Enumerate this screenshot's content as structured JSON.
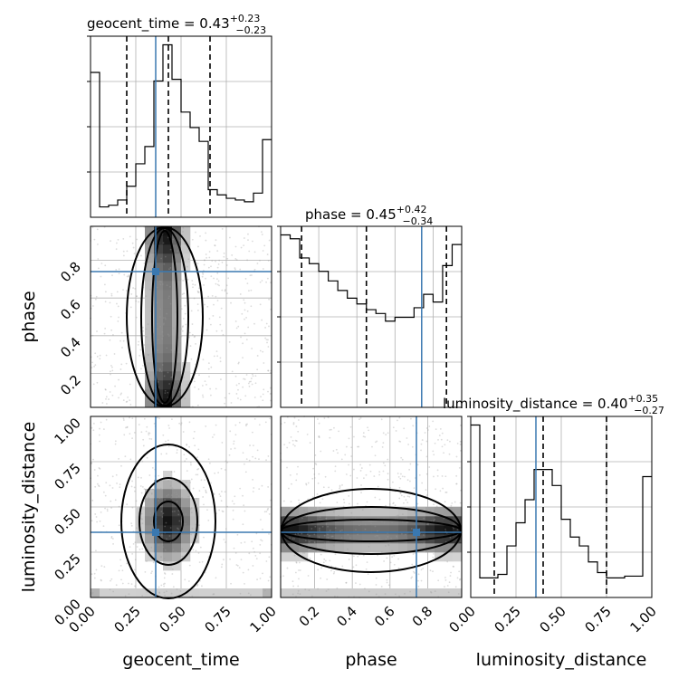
{
  "chart_data": {
    "type": "corner",
    "parameters": [
      "geocent_time",
      "phase",
      "luminosity_distance"
    ],
    "truths": {
      "geocent_time": 0.36,
      "phase": 0.74,
      "luminosity_distance": 0.36
    },
    "panels": [
      {
        "kind": "histogram",
        "parameter": "geocent_time",
        "title_main": "geocent_time = 0.43",
        "title_plus": "+0.23",
        "title_minus": "−0.23",
        "xlim": [
          0,
          1
        ],
        "bin_edges": [
          0,
          0.05,
          0.1,
          0.15,
          0.2,
          0.25,
          0.3,
          0.35,
          0.4,
          0.45,
          0.5,
          0.55,
          0.6,
          0.65,
          0.7,
          0.75,
          0.8,
          0.85,
          0.9,
          0.95,
          1.0
        ],
        "counts": [
          0.84,
          0.06,
          0.07,
          0.1,
          0.18,
          0.31,
          0.41,
          0.79,
          1.0,
          0.8,
          0.61,
          0.52,
          0.44,
          0.16,
          0.13,
          0.11,
          0.1,
          0.09,
          0.14,
          0.45
        ],
        "quantiles": [
          0.2,
          0.43,
          0.66
        ],
        "xticks": [
          0,
          0.25,
          0.5,
          0.75,
          1.0
        ],
        "xtick_labels": [
          "0.00",
          "0.25",
          "0.50",
          "0.75",
          "1.00"
        ]
      },
      {
        "kind": "histogram",
        "parameter": "phase",
        "title_main": "phase = 0.45",
        "title_plus": "+0.42",
        "title_minus": "−0.34",
        "xlim": [
          0,
          0.95
        ],
        "bin_edges": [
          0,
          0.05,
          0.1,
          0.15,
          0.2,
          0.25,
          0.3,
          0.35,
          0.4,
          0.45,
          0.5,
          0.55,
          0.6,
          0.65,
          0.7,
          0.75,
          0.8,
          0.85,
          0.9,
          0.95
        ],
        "counts": [
          0.9,
          0.88,
          0.78,
          0.75,
          0.71,
          0.66,
          0.61,
          0.57,
          0.54,
          0.51,
          0.49,
          0.45,
          0.47,
          0.47,
          0.52,
          0.59,
          0.55,
          0.74,
          0.85
        ],
        "quantiles": [
          0.11,
          0.45,
          0.87
        ],
        "xticks": [
          0.2,
          0.4,
          0.6,
          0.8
        ],
        "xtick_labels": [
          "0.2",
          "0.4",
          "0.6",
          "0.8"
        ],
        "yticks": [
          0.2,
          0.4,
          0.6,
          0.8
        ],
        "ytick_labels": [
          "0.2",
          "0.4",
          "0.6",
          "0.8"
        ]
      },
      {
        "kind": "histogram",
        "parameter": "luminosity_distance",
        "title_main": "luminosity_distance = 0.40",
        "title_plus": "+0.35",
        "title_minus": "−0.27",
        "xlim": [
          0,
          1
        ],
        "bin_edges": [
          0,
          0.05,
          0.1,
          0.15,
          0.2,
          0.25,
          0.3,
          0.35,
          0.4,
          0.45,
          0.5,
          0.55,
          0.6,
          0.65,
          0.7,
          0.75,
          0.8,
          0.85,
          0.9,
          0.95,
          1.0
        ],
        "counts": [
          0.97,
          0.11,
          0.11,
          0.13,
          0.29,
          0.42,
          0.55,
          0.72,
          0.72,
          0.63,
          0.44,
          0.34,
          0.29,
          0.2,
          0.14,
          0.11,
          0.11,
          0.12,
          0.12,
          0.68
        ],
        "quantiles": [
          0.13,
          0.4,
          0.75
        ],
        "xticks": [
          0,
          0.25,
          0.5,
          0.75,
          1.0
        ],
        "xtick_labels": [
          "0.00",
          "0.25",
          "0.50",
          "0.75",
          "1.00"
        ],
        "yticks": [
          0,
          0.25,
          0.5,
          0.75,
          1.0
        ],
        "ytick_labels": [
          "0.00",
          "0.25",
          "0.50",
          "0.75",
          "1.00"
        ]
      }
    ],
    "axis_labels": {
      "bottom": [
        "geocent_time",
        "phase",
        "luminosity_distance"
      ],
      "left": [
        "phase",
        "luminosity_distance"
      ]
    },
    "grid": true
  }
}
